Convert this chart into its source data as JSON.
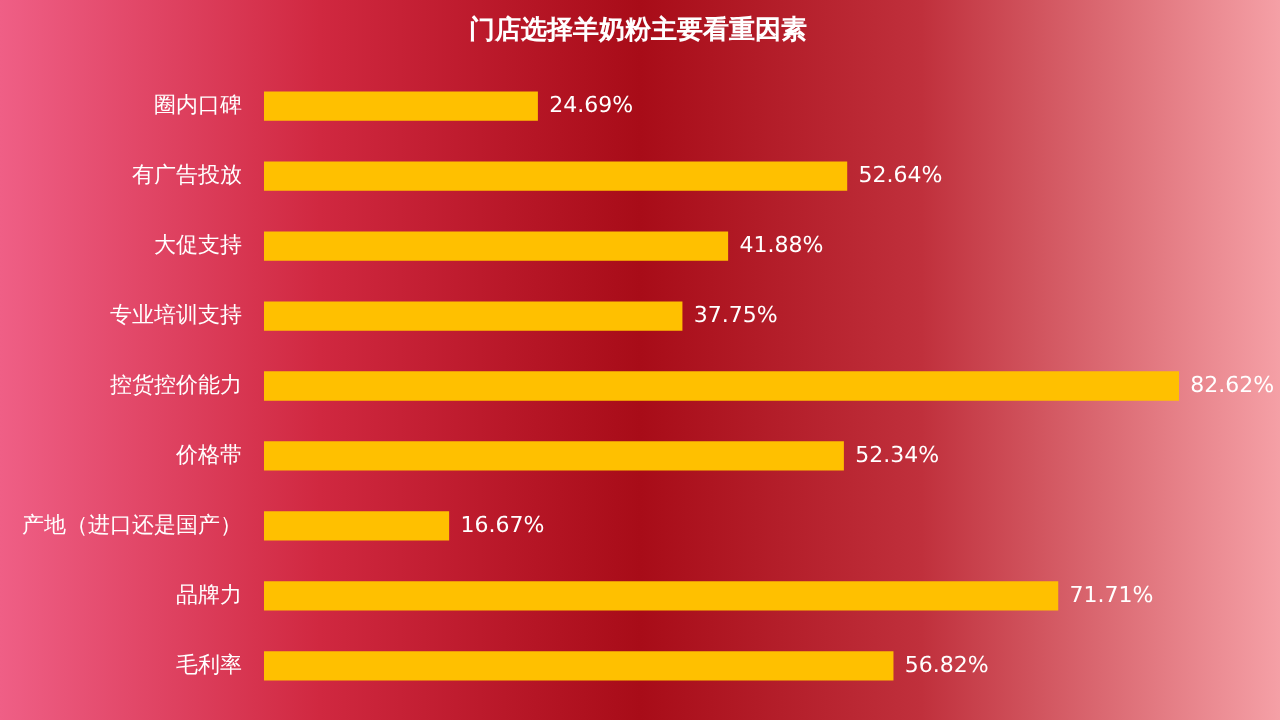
{
  "chart_data": {
    "type": "bar",
    "orientation": "horizontal",
    "title": "门店选择羊奶粉主要看重因素",
    "categories": [
      "圈内口碑",
      "有广告投放",
      "大促支持",
      "专业培训支持",
      "控货控价能力",
      "价格带",
      "产地（进口还是国产）",
      "品牌力",
      "毛利率"
    ],
    "values": [
      24.69,
      52.64,
      41.88,
      37.75,
      82.62,
      52.34,
      16.67,
      71.71,
      56.82
    ],
    "value_labels": [
      "24.69%",
      "52.64%",
      "41.88%",
      "37.75%",
      "82.62%",
      "52.34%",
      "16.67%",
      "71.71%",
      "56.82%"
    ],
    "color": "#ffc000",
    "tick_labels": "y"
  }
}
